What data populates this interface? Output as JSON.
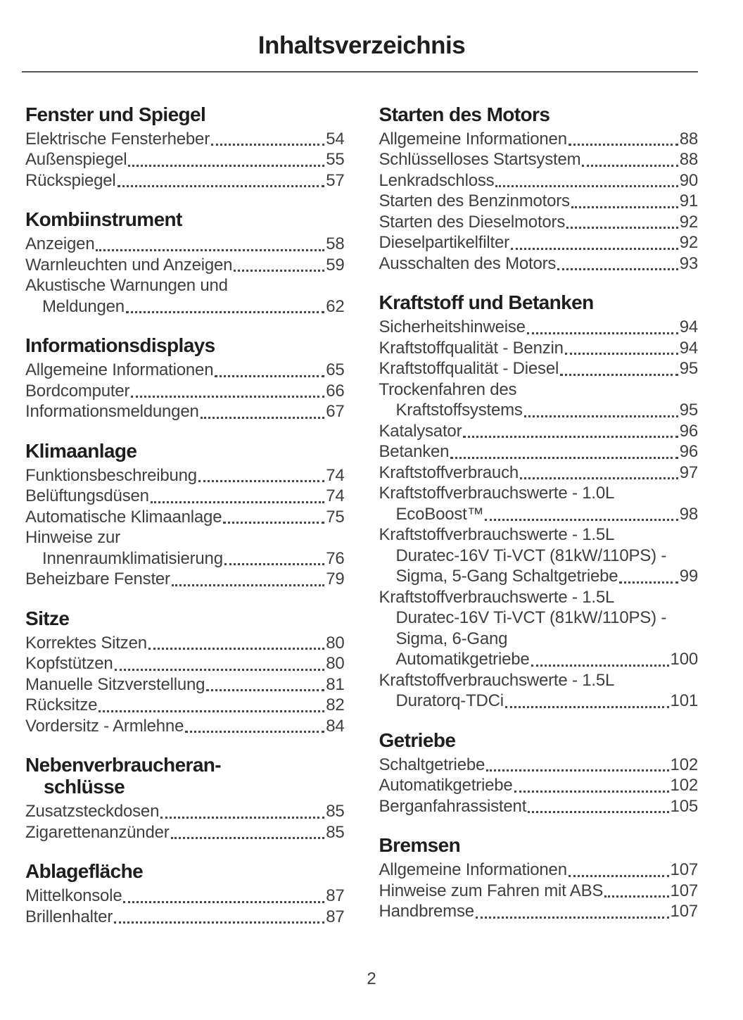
{
  "header": {
    "title": "Inhaltsverzeichnis"
  },
  "footer": {
    "page_number": "2"
  },
  "toc": {
    "columns": [
      {
        "sections": [
          {
            "heading_lines": [
              "Fenster und Spiegel"
            ],
            "entries": [
              {
                "lines": [
                  "Elektrische Fensterheber"
                ],
                "page": "54"
              },
              {
                "lines": [
                  "Außenspiegel"
                ],
                "page": "55"
              },
              {
                "lines": [
                  "Rückspiegel"
                ],
                "page": "57"
              }
            ]
          },
          {
            "heading_lines": [
              "Kombiinstrument"
            ],
            "entries": [
              {
                "lines": [
                  "Anzeigen"
                ],
                "page": "58"
              },
              {
                "lines": [
                  "Warnleuchten und Anzeigen"
                ],
                "page": "59"
              },
              {
                "lines": [
                  "Akustische Warnungen und",
                  "Meldungen"
                ],
                "page": "62"
              }
            ]
          },
          {
            "heading_lines": [
              "Informationsdisplays"
            ],
            "entries": [
              {
                "lines": [
                  "Allgemeine Informationen"
                ],
                "page": "65"
              },
              {
                "lines": [
                  "Bordcomputer"
                ],
                "page": "66"
              },
              {
                "lines": [
                  "Informationsmeldungen"
                ],
                "page": "67"
              }
            ]
          },
          {
            "heading_lines": [
              "Klimaanlage"
            ],
            "entries": [
              {
                "lines": [
                  "Funktionsbeschreibung"
                ],
                "page": "74"
              },
              {
                "lines": [
                  "Belüftungsdüsen"
                ],
                "page": "74"
              },
              {
                "lines": [
                  "Automatische Klimaanlage"
                ],
                "page": "75"
              },
              {
                "lines": [
                  "Hinweise zur",
                  "Innenraumklimatisierung"
                ],
                "page": "76"
              },
              {
                "lines": [
                  "Beheizbare Fenster"
                ],
                "page": "79"
              }
            ]
          },
          {
            "heading_lines": [
              "Sitze"
            ],
            "entries": [
              {
                "lines": [
                  "Korrektes Sitzen"
                ],
                "page": "80"
              },
              {
                "lines": [
                  "Kopfstützen"
                ],
                "page": "80"
              },
              {
                "lines": [
                  "Manuelle Sitzverstellung"
                ],
                "page": "81"
              },
              {
                "lines": [
                  "Rücksitze"
                ],
                "page": "82"
              },
              {
                "lines": [
                  "Vordersitz - Armlehne"
                ],
                "page": "84"
              }
            ]
          },
          {
            "heading_lines": [
              "Nebenverbraucheran-",
              "schlüsse"
            ],
            "entries": [
              {
                "lines": [
                  "Zusatzsteckdosen"
                ],
                "page": "85"
              },
              {
                "lines": [
                  "Zigarettenanzünder"
                ],
                "page": "85"
              }
            ]
          },
          {
            "heading_lines": [
              "Ablagefläche"
            ],
            "entries": [
              {
                "lines": [
                  "Mittelkonsole"
                ],
                "page": "87"
              },
              {
                "lines": [
                  "Brillenhalter"
                ],
                "page": "87"
              }
            ]
          }
        ]
      },
      {
        "sections": [
          {
            "heading_lines": [
              "Starten des Motors"
            ],
            "entries": [
              {
                "lines": [
                  "Allgemeine Informationen"
                ],
                "page": "88"
              },
              {
                "lines": [
                  "Schlüsselloses Startsystem"
                ],
                "page": "88"
              },
              {
                "lines": [
                  "Lenkradschloss"
                ],
                "page": "90"
              },
              {
                "lines": [
                  "Starten des Benzinmotors"
                ],
                "page": "91"
              },
              {
                "lines": [
                  "Starten des Dieselmotors"
                ],
                "page": "92"
              },
              {
                "lines": [
                  "Dieselpartikelfilter"
                ],
                "page": "92"
              },
              {
                "lines": [
                  "Ausschalten des Motors"
                ],
                "page": "93"
              }
            ]
          },
          {
            "heading_lines": [
              "Kraftstoff und Betanken"
            ],
            "entries": [
              {
                "lines": [
                  "Sicherheitshinweise"
                ],
                "page": "94"
              },
              {
                "lines": [
                  "Kraftstoffqualität - Benzin"
                ],
                "page": "94"
              },
              {
                "lines": [
                  "Kraftstoffqualität - Diesel"
                ],
                "page": "95"
              },
              {
                "lines": [
                  "Trockenfahren des",
                  "Kraftstoffsystems"
                ],
                "page": "95"
              },
              {
                "lines": [
                  "Katalysator"
                ],
                "page": "96"
              },
              {
                "lines": [
                  "Betanken"
                ],
                "page": "96"
              },
              {
                "lines": [
                  "Kraftstoffverbrauch"
                ],
                "page": "97"
              },
              {
                "lines": [
                  "Kraftstoffverbrauchswerte - 1.0L",
                  "EcoBoost™"
                ],
                "page": "98"
              },
              {
                "lines": [
                  "Kraftstoffverbrauchswerte - 1.5L",
                  "Duratec-16V Ti-VCT (81kW/110PS) -",
                  "Sigma, 5-Gang Schaltgetriebe"
                ],
                "page": "99"
              },
              {
                "lines": [
                  "Kraftstoffverbrauchswerte - 1.5L",
                  "Duratec-16V Ti-VCT (81kW/110PS) -",
                  "Sigma, 6-Gang",
                  "Automatikgetriebe"
                ],
                "page": "100"
              },
              {
                "lines": [
                  "Kraftstoffverbrauchswerte - 1.5L",
                  "Duratorq-TDCi"
                ],
                "page": "101"
              }
            ]
          },
          {
            "heading_lines": [
              "Getriebe"
            ],
            "entries": [
              {
                "lines": [
                  "Schaltgetriebe"
                ],
                "page": "102"
              },
              {
                "lines": [
                  "Automatikgetriebe"
                ],
                "page": "102"
              },
              {
                "lines": [
                  "Berganfahrassistent"
                ],
                "page": "105"
              }
            ]
          },
          {
            "heading_lines": [
              "Bremsen"
            ],
            "entries": [
              {
                "lines": [
                  "Allgemeine Informationen"
                ],
                "page": "107"
              },
              {
                "lines": [
                  "Hinweise zum Fahren mit ABS"
                ],
                "page": "107"
              },
              {
                "lines": [
                  "Handbremse"
                ],
                "page": "107"
              }
            ]
          }
        ]
      }
    ]
  }
}
